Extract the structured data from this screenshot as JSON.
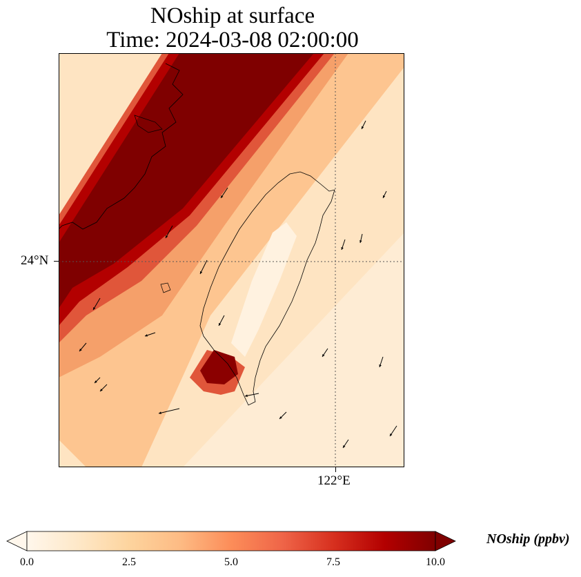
{
  "title_line1": "NOship at surface",
  "title_line2": "Time: 2024-03-08 02:00:00",
  "lat_tick_label": "24°N",
  "lon_tick_label": "122°E",
  "colorbar": {
    "label": "NOship (ppbv)",
    "min": 0.0,
    "max": 10.0,
    "ticks": [
      "0.0",
      "2.5",
      "5.0",
      "7.5",
      "10.0"
    ],
    "colormap": [
      "#fff7ec",
      "#fee8c8",
      "#fdd49e",
      "#fdbb84",
      "#fc8d59",
      "#ef6548",
      "#d7301f",
      "#b30000",
      "#7f0000"
    ],
    "extend": "both"
  },
  "map": {
    "background_color": "#fee4c2",
    "plume_colors": [
      "#fdc590",
      "#f5a06a",
      "#e0563a",
      "#b30000",
      "#7f0000"
    ],
    "coastline_color": "#000000",
    "gridline_style": "dotted",
    "hotspot_color": "#8b0000",
    "wind_vector_color": "#000000"
  }
}
